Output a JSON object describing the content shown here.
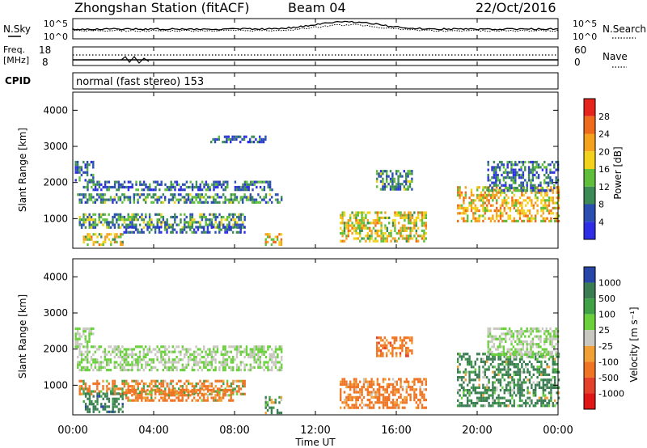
{
  "header": {
    "station": "Zhongshan Station (fitACF)",
    "beam": "Beam 04",
    "date": "22/Oct/2016",
    "cpid_label": "CPID",
    "cpid_text": "normal (fast stereo) 153"
  },
  "top_panels": {
    "nsky_label": "N.Sky",
    "nsearch_label": "N.Search",
    "noise_ticks": [
      "10^5",
      "10^0"
    ],
    "freq_label_top": "Freq.",
    "freq_label_unit": "[MHz]",
    "freq_ticks": [
      "18",
      "8"
    ],
    "nave_label": "Nave",
    "nave_ticks": [
      "60",
      "0"
    ]
  },
  "axes": {
    "ylabel": "Slant Range [km]",
    "yticks": [
      "1000",
      "2000",
      "3000",
      "4000"
    ],
    "xticks": [
      "00:00",
      "04:00",
      "08:00",
      "12:00",
      "16:00",
      "20:00",
      "00:00"
    ],
    "xlabel": "Time UT",
    "power_colorbar_label": "Power [dB]",
    "velocity_colorbar_label": "Velocity [m s⁻¹]"
  },
  "colors": {
    "power_scale": [
      "#2d2de6",
      "#2a4fb0",
      "#3c8a55",
      "#5fbf3a",
      "#f2d21a",
      "#f5a21e",
      "#ef6b1c",
      "#e6241b"
    ],
    "velocity_scale": [
      "#2746a8",
      "#3a7d52",
      "#3fa246",
      "#6ad03c",
      "#c8c8c0",
      "#f0a035",
      "#ef7423",
      "#e4402a",
      "#e01515"
    ]
  },
  "chart_data": [
    {
      "type": "heatmap",
      "title": "Power",
      "xlabel": "Time UT",
      "ylabel": "Slant Range [km]",
      "xlim_hours": [
        0,
        24
      ],
      "ylim_km": [
        180,
        4500
      ],
      "colorbar_label": "Power [dB]",
      "colorbar_ticks": [
        4,
        8,
        12,
        16,
        20,
        24,
        28
      ],
      "colorbar_range": [
        0,
        32
      ],
      "regions": [
        {
          "t0": 0.2,
          "t1": 10.3,
          "r0": 1480,
          "r1": 1700,
          "level": 10
        },
        {
          "t0": 0.5,
          "t1": 10.0,
          "r0": 1780,
          "r1": 2050,
          "level": 7
        },
        {
          "t0": 0.1,
          "t1": 1.0,
          "r0": 2050,
          "r1": 2600,
          "level": 7
        },
        {
          "t0": 0.3,
          "t1": 8.5,
          "r0": 750,
          "r1": 1150,
          "level": 11
        },
        {
          "t0": 0.5,
          "t1": 2.5,
          "r0": 250,
          "r1": 600,
          "level": 18
        },
        {
          "t0": 2.5,
          "t1": 8.5,
          "r0": 600,
          "r1": 800,
          "level": 6
        },
        {
          "t0": 9.5,
          "t1": 10.3,
          "r0": 250,
          "r1": 600,
          "level": 20
        },
        {
          "t0": 6.8,
          "t1": 9.5,
          "r0": 3100,
          "r1": 3300,
          "level": 6
        },
        {
          "t0": 13.2,
          "t1": 17.5,
          "r0": 400,
          "r1": 1200,
          "level": 18
        },
        {
          "t0": 15.0,
          "t1": 16.8,
          "r0": 1800,
          "r1": 2350,
          "level": 10
        },
        {
          "t0": 19.0,
          "t1": 24.0,
          "r0": 900,
          "r1": 1900,
          "level": 20
        },
        {
          "t0": 20.5,
          "t1": 24.0,
          "r0": 1800,
          "r1": 2600,
          "level": 8
        }
      ]
    },
    {
      "type": "heatmap",
      "title": "Velocity",
      "xlabel": "Time UT",
      "ylabel": "Slant Range [km]",
      "xlim_hours": [
        0,
        24
      ],
      "ylim_km": [
        180,
        4500
      ],
      "colorbar_label": "Velocity [m s⁻¹]",
      "colorbar_ticks": [
        1000,
        500,
        100,
        25,
        -25,
        -100,
        -500,
        -1000
      ],
      "regions": [
        {
          "t0": 0.2,
          "t1": 10.3,
          "r0": 1400,
          "r1": 2100,
          "level": 0
        },
        {
          "t0": 0.1,
          "t1": 1.0,
          "r0": 2050,
          "r1": 2600,
          "level": 0
        },
        {
          "t0": 0.3,
          "t1": 8.5,
          "r0": 750,
          "r1": 1150,
          "level": -150
        },
        {
          "t0": 0.5,
          "t1": 2.5,
          "r0": 250,
          "r1": 800,
          "level": 300
        },
        {
          "t0": 2.5,
          "t1": 8.0,
          "r0": 600,
          "r1": 900,
          "level": -200
        },
        {
          "t0": 9.5,
          "t1": 10.3,
          "r0": 250,
          "r1": 700,
          "level": 200
        },
        {
          "t0": 13.2,
          "t1": 17.5,
          "r0": 400,
          "r1": 1200,
          "level": -250
        },
        {
          "t0": 15.0,
          "t1": 16.8,
          "r0": 1800,
          "r1": 2350,
          "level": -300
        },
        {
          "t0": 19.0,
          "t1": 24.0,
          "r0": 400,
          "r1": 1900,
          "level": 200
        },
        {
          "t0": 20.5,
          "t1": 24.0,
          "r0": 1800,
          "r1": 2600,
          "level": 0
        }
      ]
    }
  ]
}
